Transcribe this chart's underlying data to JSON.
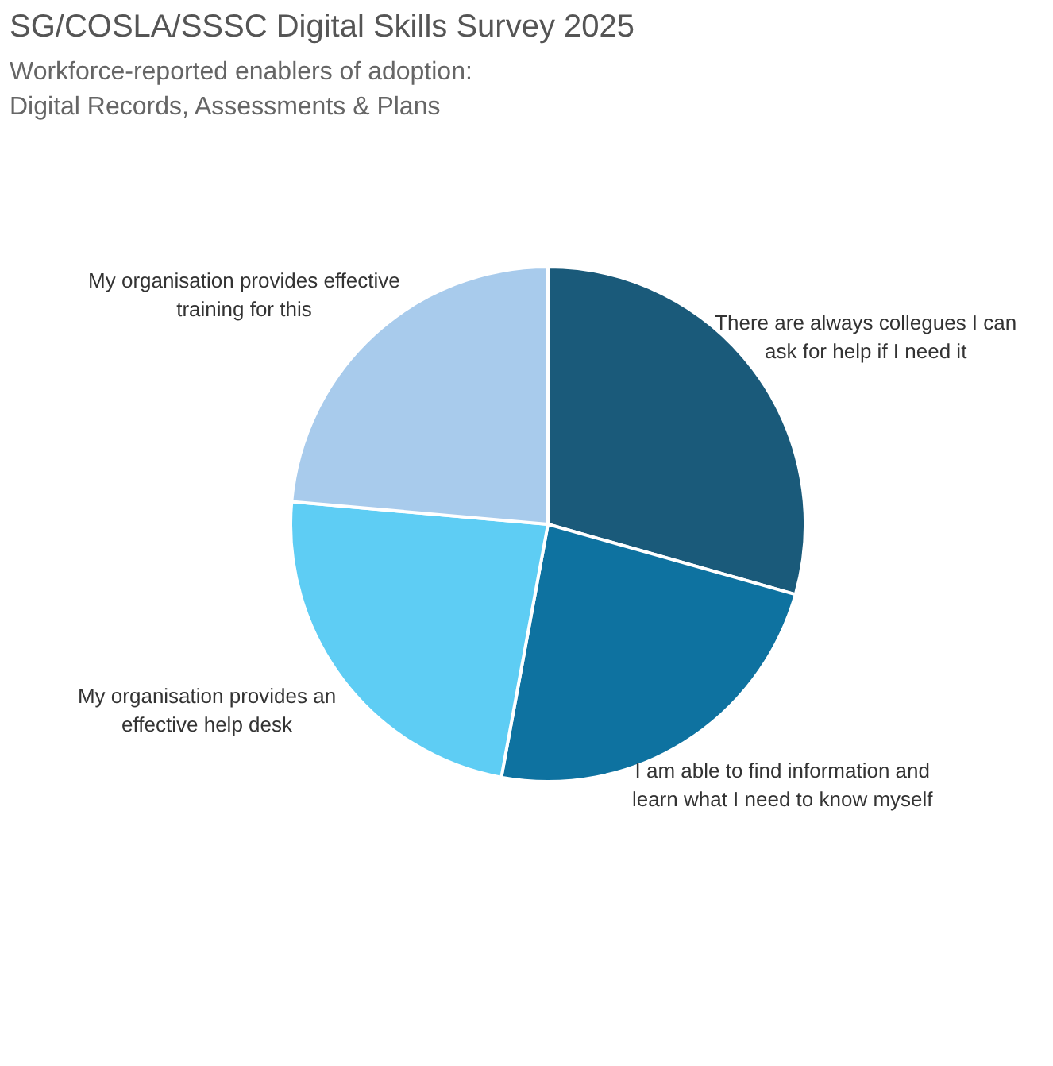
{
  "chart_data": {
    "type": "pie",
    "title": "SG/COSLA/SSSC Digital Skills Survey 2025",
    "subtitle": "Workforce-reported enablers of adoption:\nDigital Records, Assessments & Plans",
    "categories": [
      "There are always collegues I can ask for help if I need it",
      "I am able to find information and learn what I need to know myself",
      "My organisation provides an effective help desk",
      "My organisation provides effective training for this"
    ],
    "values": [
      29.4,
      23.5,
      23.5,
      23.6
    ],
    "colors": [
      "#1a5a7a",
      "#0e72a0",
      "#5ecdf4",
      "#a8cbec"
    ],
    "legend": false
  }
}
